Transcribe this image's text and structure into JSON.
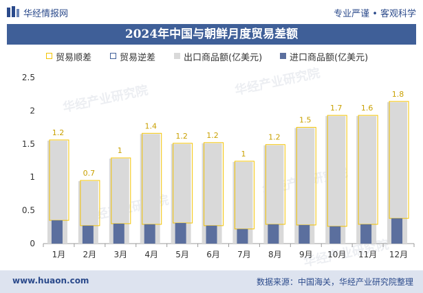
{
  "header": {
    "brand": "华经情报网",
    "slogan": "专业严谨 • 客观科学"
  },
  "title": "2024年中国与朝鲜月度贸易差额",
  "legend": [
    {
      "label": "贸易顺差",
      "color": "#f2c200",
      "style": "outline"
    },
    {
      "label": "贸易逆差",
      "color": "#3f5f98",
      "style": "outline"
    },
    {
      "label": "出口商品额(亿美元)",
      "color": "#d9d9d9",
      "style": "fill"
    },
    {
      "label": "进口商品额(亿美元)",
      "color": "#5b6f9e",
      "style": "fill"
    }
  ],
  "watermarks": [
    "华经产业研究院",
    "www.huaon.com"
  ],
  "chart_data": {
    "type": "bar",
    "categories": [
      "1月",
      "2月",
      "3月",
      "4月",
      "5月",
      "6月",
      "7月",
      "8月",
      "9月",
      "10月",
      "11月",
      "12月"
    ],
    "series": [
      {
        "name": "出口商品额(亿美元)",
        "values": [
          1.55,
          0.94,
          1.28,
          1.65,
          1.5,
          1.51,
          1.23,
          1.48,
          1.74,
          1.92,
          1.92,
          2.13
        ]
      },
      {
        "name": "进口商品额(亿美元)",
        "values": [
          0.35,
          0.27,
          0.3,
          0.29,
          0.31,
          0.27,
          0.22,
          0.29,
          0.28,
          0.26,
          0.29,
          0.38
        ]
      },
      {
        "name": "贸易顺差",
        "values": [
          1.2,
          0.7,
          1.0,
          1.4,
          1.2,
          1.2,
          1.0,
          1.2,
          1.5,
          1.7,
          1.6,
          1.8
        ]
      }
    ],
    "data_labels": [
      "1.2",
      "0.7",
      "1",
      "1.4",
      "1.2",
      "1.2",
      "1",
      "1.2",
      "1.5",
      "1.7",
      "1.6",
      "1.8"
    ],
    "yticks": [
      "0",
      "0.5",
      "1",
      "1.5",
      "2",
      "2.5"
    ],
    "ylim": [
      0,
      2.5
    ],
    "grid": false,
    "legend_position": "top"
  },
  "colors": {
    "export": "#d9d9d9",
    "import": "#5b6f9e",
    "surplus": "#f2c200",
    "label": "#c9a000",
    "axis": "#999999",
    "tick": "#333333"
  },
  "footer": {
    "site": "www.huaon.com",
    "source": "数据来源：中国海关，华经产业研究院整理"
  }
}
